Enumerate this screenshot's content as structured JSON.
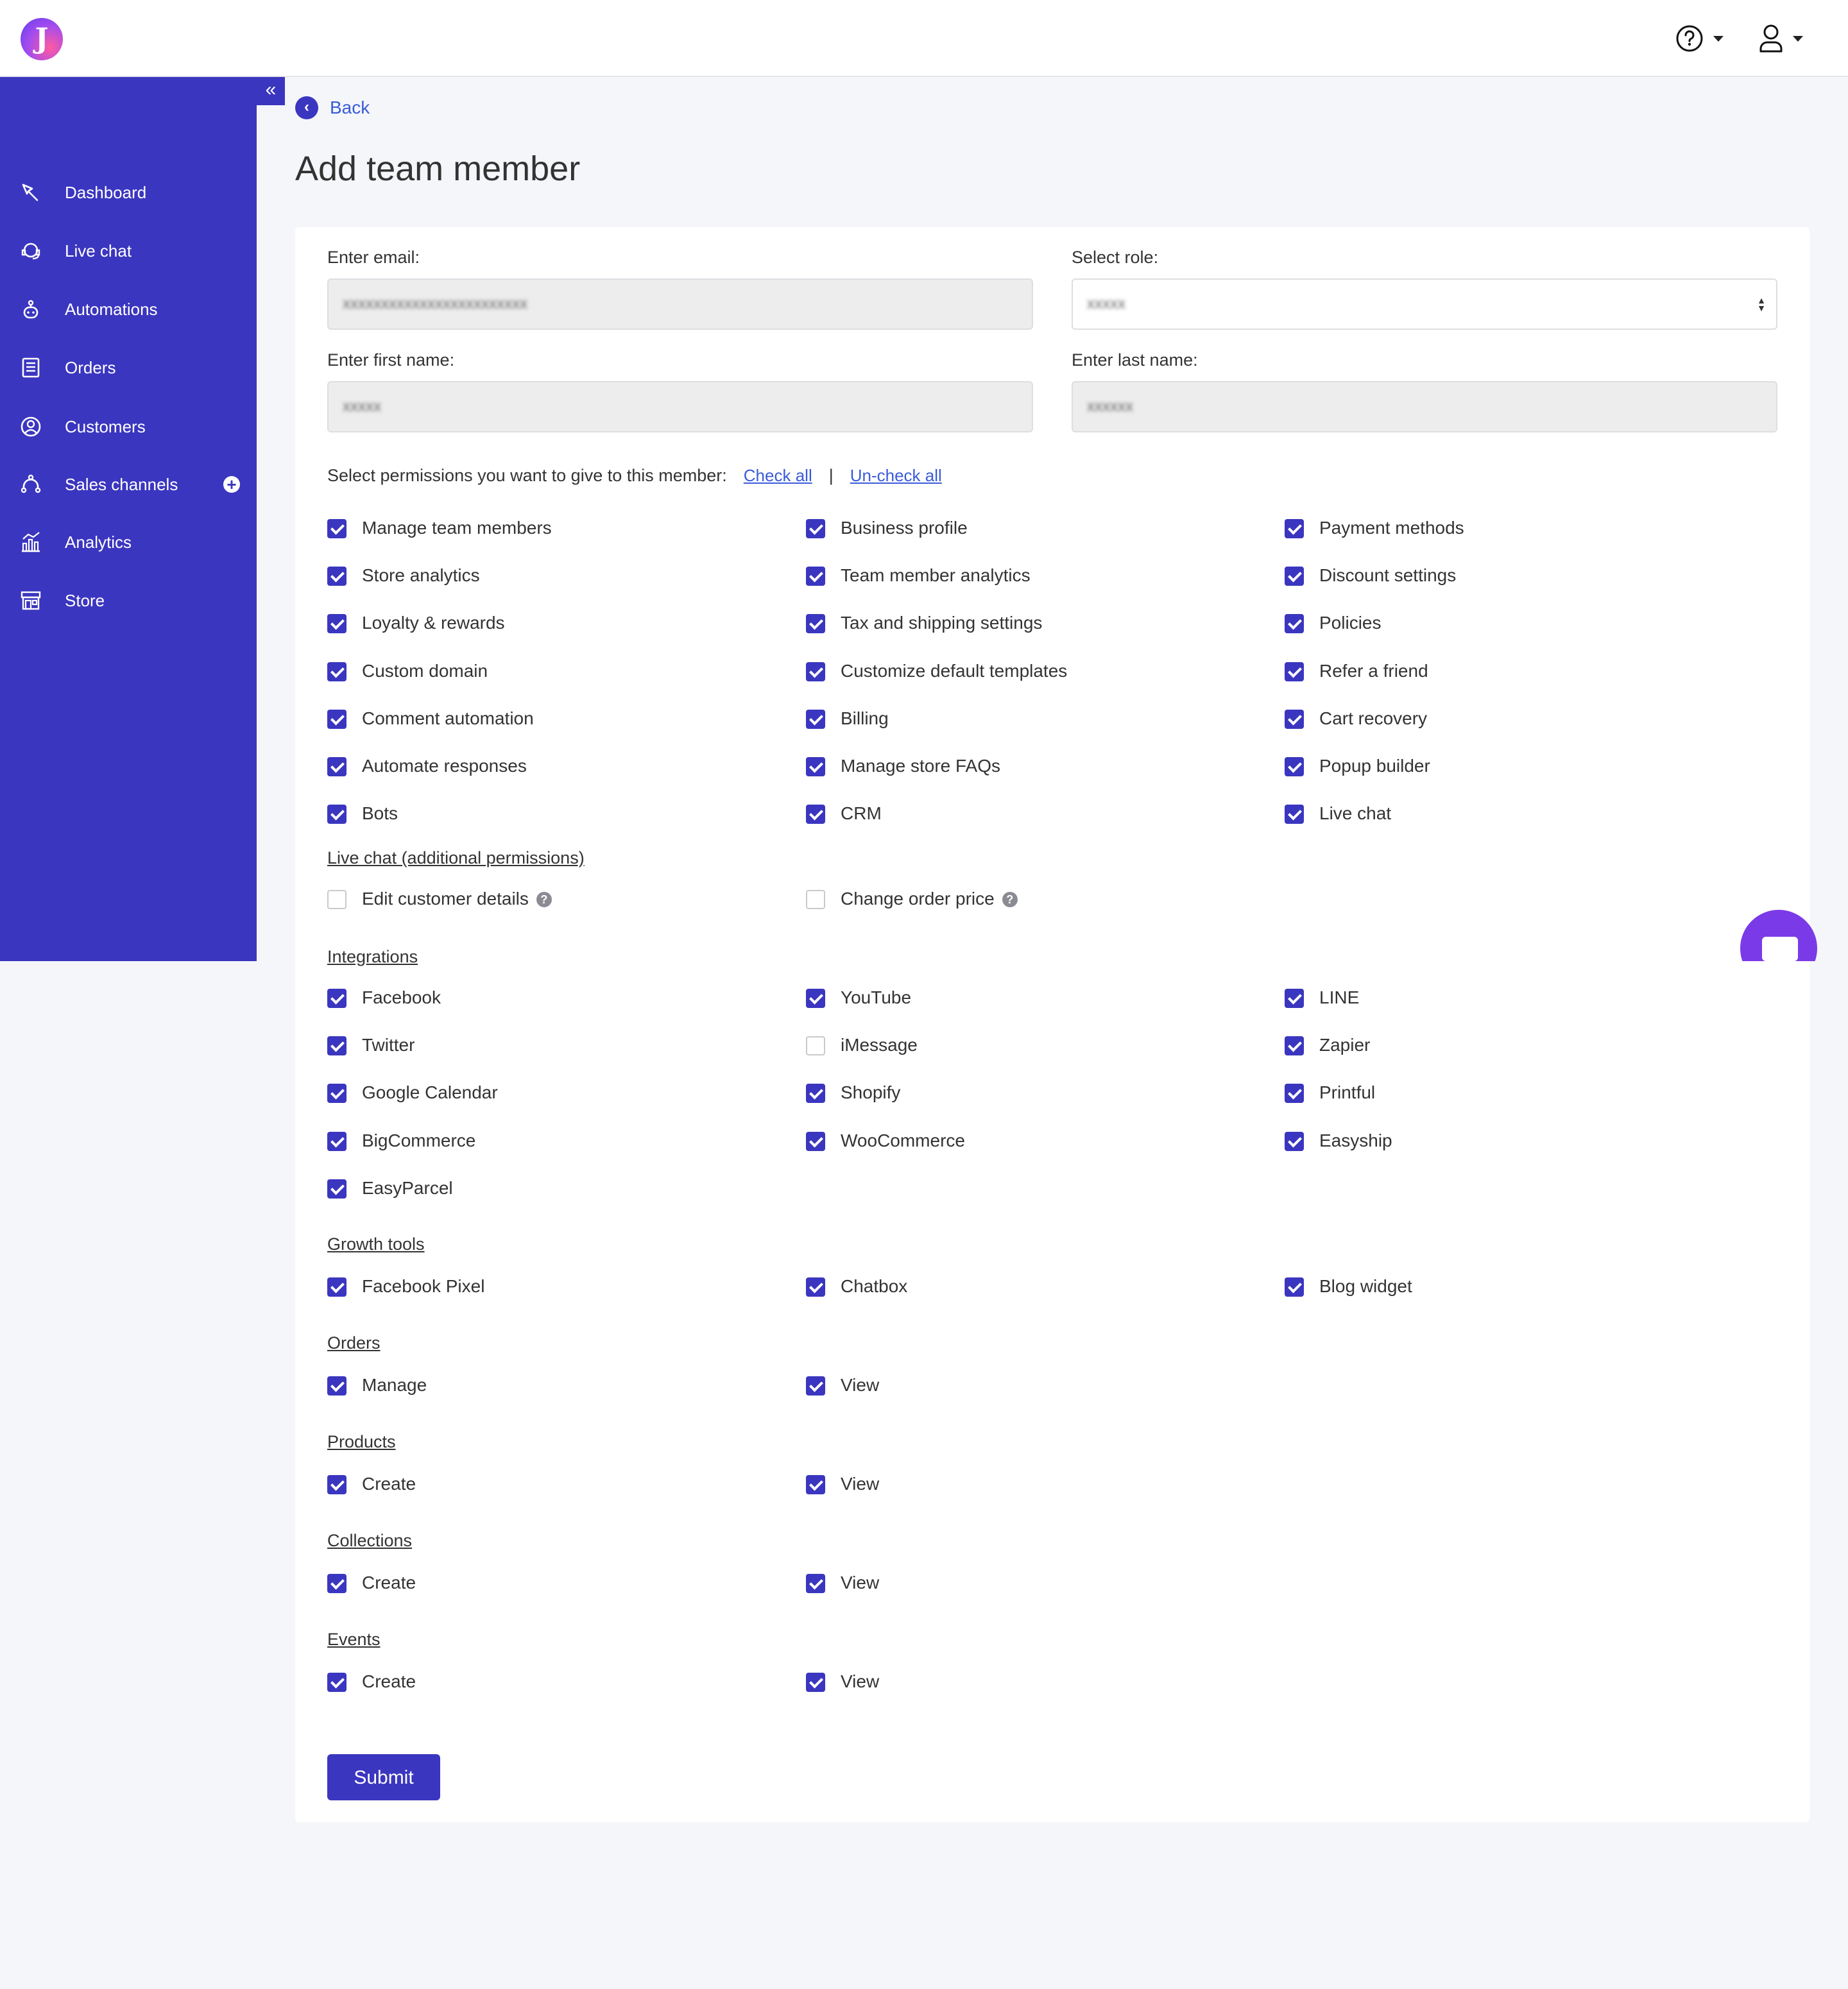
{
  "app": {
    "logo_letter": "J"
  },
  "sidebar": {
    "items": [
      {
        "label": "Dashboard",
        "icon": "dashboard-icon"
      },
      {
        "label": "Live chat",
        "icon": "live-chat-icon"
      },
      {
        "label": "Automations",
        "icon": "automations-icon"
      },
      {
        "label": "Orders",
        "icon": "orders-icon"
      },
      {
        "label": "Customers",
        "icon": "customers-icon"
      },
      {
        "label": "Sales channels",
        "icon": "sales-channels-icon"
      },
      {
        "label": "Analytics",
        "icon": "analytics-icon"
      },
      {
        "label": "Store",
        "icon": "store-icon"
      }
    ]
  },
  "nav": {
    "back_label": "Back",
    "collapse_glyph": "«"
  },
  "page": {
    "title": "Add team member"
  },
  "form": {
    "email_label": "Enter email:",
    "email_value": "xxxxxxxxxxxxxxxxxxxxxxxx",
    "role_label": "Select role:",
    "role_value": "xxxxx",
    "first_name_label": "Enter first name:",
    "first_name_value": "xxxxx",
    "last_name_label": "Enter last name:",
    "last_name_value": "xxxxxx"
  },
  "permissions": {
    "prompt": "Select permissions you want to give to this member:",
    "check_all": "Check all",
    "separator": "|",
    "uncheck_all": "Un-check all",
    "general": [
      {
        "label": "Manage team members",
        "checked": true
      },
      {
        "label": "Business profile",
        "checked": true
      },
      {
        "label": "Payment methods",
        "checked": true
      },
      {
        "label": "Store analytics",
        "checked": true
      },
      {
        "label": "Team member analytics",
        "checked": true
      },
      {
        "label": "Discount settings",
        "checked": true
      },
      {
        "label": "Loyalty & rewards",
        "checked": true
      },
      {
        "label": "Tax and shipping settings",
        "checked": true
      },
      {
        "label": "Policies",
        "checked": true
      },
      {
        "label": "Custom domain",
        "checked": true
      },
      {
        "label": "Customize default templates",
        "checked": true
      },
      {
        "label": "Refer a friend",
        "checked": true
      },
      {
        "label": "Comment automation",
        "checked": true
      },
      {
        "label": "Billing",
        "checked": true
      },
      {
        "label": "Cart recovery",
        "checked": true
      },
      {
        "label": "Automate responses",
        "checked": true
      },
      {
        "label": "Manage store FAQs",
        "checked": true
      },
      {
        "label": "Popup builder",
        "checked": true
      },
      {
        "label": "Bots",
        "checked": true
      },
      {
        "label": "CRM",
        "checked": true
      },
      {
        "label": "Live chat",
        "checked": true
      }
    ],
    "live_chat_title": "Live chat (additional permissions)",
    "live_chat": [
      {
        "label": "Edit customer details",
        "checked": false
      },
      {
        "label": "Change order price",
        "checked": false
      }
    ],
    "integrations_title": "Integrations",
    "integrations": [
      {
        "label": "Facebook",
        "checked": true
      },
      {
        "label": "YouTube",
        "checked": true
      },
      {
        "label": "LINE",
        "checked": true
      },
      {
        "label": "Twitter",
        "checked": true
      },
      {
        "label": "iMessage",
        "checked": false
      },
      {
        "label": "Zapier",
        "checked": true
      },
      {
        "label": "Google Calendar",
        "checked": true
      },
      {
        "label": "Shopify",
        "checked": true
      },
      {
        "label": "Printful",
        "checked": true
      },
      {
        "label": "BigCommerce",
        "checked": true
      },
      {
        "label": "WooCommerce",
        "checked": true
      },
      {
        "label": "Easyship",
        "checked": true
      },
      {
        "label": "EasyParcel",
        "checked": true
      }
    ],
    "growth_title": "Growth tools",
    "growth": [
      {
        "label": "Facebook Pixel",
        "checked": true
      },
      {
        "label": "Chatbox",
        "checked": true
      },
      {
        "label": "Blog widget",
        "checked": true
      }
    ],
    "orders_title": "Orders",
    "orders": [
      {
        "label": "Manage",
        "checked": true
      },
      {
        "label": "View",
        "checked": true
      }
    ],
    "products_title": "Products",
    "products": [
      {
        "label": "Create",
        "checked": true
      },
      {
        "label": "View",
        "checked": true
      }
    ],
    "collections_title": "Collections",
    "collections": [
      {
        "label": "Create",
        "checked": true
      },
      {
        "label": "View",
        "checked": true
      }
    ],
    "events_title": "Events",
    "events": [
      {
        "label": "Create",
        "checked": true
      },
      {
        "label": "View",
        "checked": true
      }
    ]
  },
  "actions": {
    "submit_label": "Submit"
  },
  "colors": {
    "accent": "#3b36bf",
    "link": "#3a5bd9",
    "chat_fab": "#7b3ae8"
  }
}
